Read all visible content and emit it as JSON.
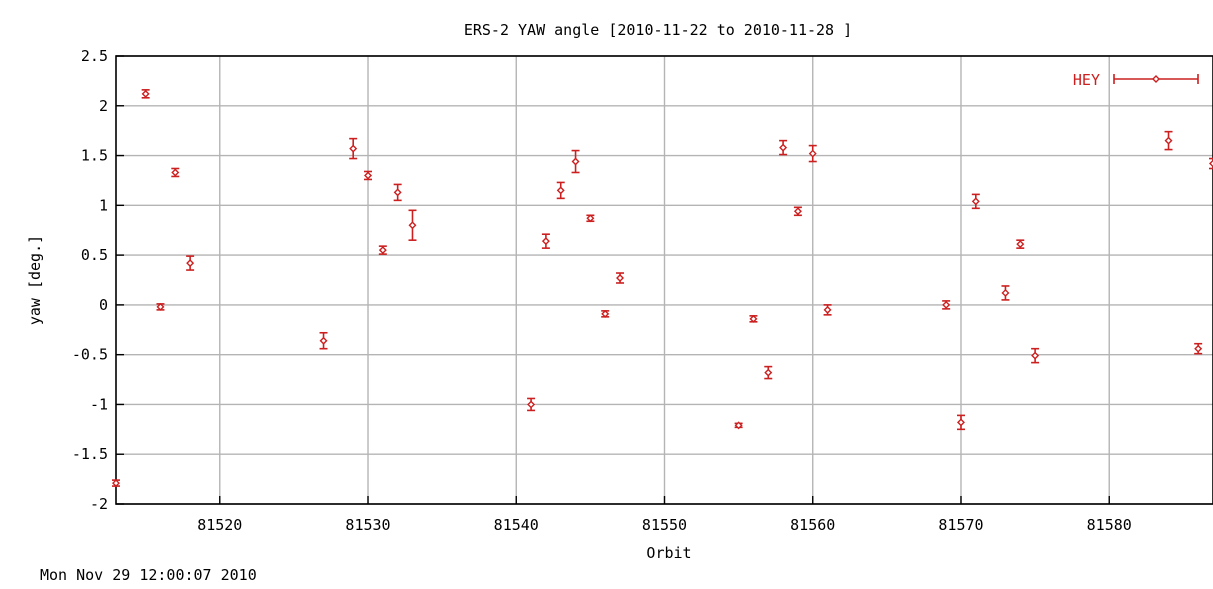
{
  "chart_data": {
    "type": "scatter",
    "title": "ERS-2 YAW angle [2010-11-22 to 2010-11-28 ]",
    "xlabel": "Orbit",
    "ylabel": "yaw [deg.]",
    "footer": "Mon Nov 29 12:00:07 2010",
    "xlim": [
      81513,
      81587
    ],
    "ylim": [
      -2,
      2.5
    ],
    "x_ticks": [
      81520,
      81530,
      81540,
      81550,
      81560,
      81570,
      81580
    ],
    "y_ticks": [
      2.5,
      2,
      1.5,
      1,
      0.5,
      0,
      -0.5,
      -1,
      -1.5,
      -2
    ],
    "x_tick_labels": [
      "81520",
      "81530",
      "81540",
      "81550",
      "81560",
      "81570",
      "81580"
    ],
    "y_tick_labels": [
      "2.5",
      "2",
      "1.5",
      "1",
      "0.5",
      "0",
      "-0.5",
      "-1",
      "-1.5",
      "-2"
    ],
    "grid": true,
    "legend_position": "top-right",
    "color": "#cc2020",
    "series": [
      {
        "name": "HEY",
        "points": [
          {
            "x": 81513,
            "y": -1.79,
            "err": 0.03
          },
          {
            "x": 81515,
            "y": 2.12,
            "err": 0.04
          },
          {
            "x": 81516,
            "y": -0.02,
            "err": 0.03
          },
          {
            "x": 81517,
            "y": 1.33,
            "err": 0.04
          },
          {
            "x": 81518,
            "y": 0.42,
            "err": 0.07
          },
          {
            "x": 81527,
            "y": -0.36,
            "err": 0.08
          },
          {
            "x": 81529,
            "y": 1.57,
            "err": 0.1
          },
          {
            "x": 81530,
            "y": 1.3,
            "err": 0.04
          },
          {
            "x": 81531,
            "y": 0.55,
            "err": 0.04
          },
          {
            "x": 81532,
            "y": 1.13,
            "err": 0.08
          },
          {
            "x": 81533,
            "y": 0.8,
            "err": 0.15
          },
          {
            "x": 81541,
            "y": -1.0,
            "err": 0.06
          },
          {
            "x": 81542,
            "y": 0.64,
            "err": 0.07
          },
          {
            "x": 81543,
            "y": 1.15,
            "err": 0.08
          },
          {
            "x": 81544,
            "y": 1.44,
            "err": 0.11
          },
          {
            "x": 81545,
            "y": 0.87,
            "err": 0.03
          },
          {
            "x": 81546,
            "y": -0.09,
            "err": 0.03
          },
          {
            "x": 81547,
            "y": 0.27,
            "err": 0.05
          },
          {
            "x": 81555,
            "y": -1.21,
            "err": 0.02
          },
          {
            "x": 81556,
            "y": -0.14,
            "err": 0.03
          },
          {
            "x": 81557,
            "y": -0.68,
            "err": 0.06
          },
          {
            "x": 81558,
            "y": 1.58,
            "err": 0.07
          },
          {
            "x": 81559,
            "y": 0.94,
            "err": 0.04
          },
          {
            "x": 81560,
            "y": 1.52,
            "err": 0.08
          },
          {
            "x": 81561,
            "y": -0.05,
            "err": 0.05
          },
          {
            "x": 81569,
            "y": 0.0,
            "err": 0.04
          },
          {
            "x": 81570,
            "y": -1.18,
            "err": 0.07
          },
          {
            "x": 81571,
            "y": 1.04,
            "err": 0.07
          },
          {
            "x": 81573,
            "y": 0.12,
            "err": 0.07
          },
          {
            "x": 81574,
            "y": 0.61,
            "err": 0.04
          },
          {
            "x": 81575,
            "y": -0.51,
            "err": 0.07
          },
          {
            "x": 81584,
            "y": 1.65,
            "err": 0.09
          },
          {
            "x": 81586,
            "y": -0.44,
            "err": 0.05
          },
          {
            "x": 81587,
            "y": 1.42,
            "err": 0.05
          }
        ]
      }
    ]
  }
}
